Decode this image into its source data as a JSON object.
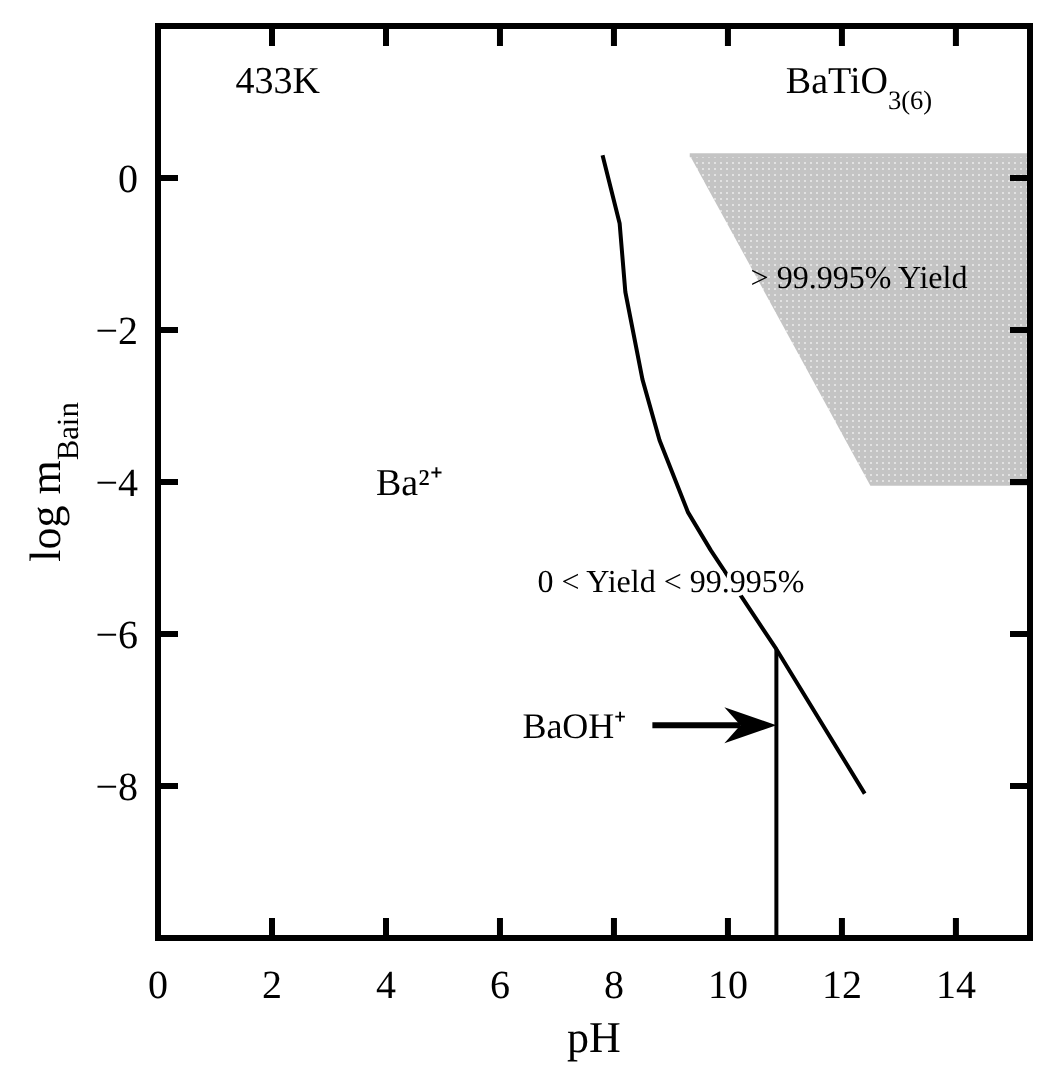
{
  "chart_data": {
    "type": "line",
    "xlabel": "pH",
    "ylabel": "log m$_{Bain}$",
    "xlim": [
      0,
      15.3
    ],
    "ylim": [
      -10,
      2
    ],
    "xticks": [
      0,
      2,
      4,
      6,
      8,
      10,
      12,
      14
    ],
    "yticks": [
      {
        "value": 0,
        "label": "0"
      },
      {
        "value": -2,
        "label": "−2"
      },
      {
        "value": -4,
        "label": "−4"
      },
      {
        "value": -6,
        "label": "−6"
      },
      {
        "value": -8,
        "label": "−8"
      }
    ],
    "grid": false,
    "marker": "none",
    "line_style": "solid",
    "series": [
      {
        "color": "#c4c4c4",
        "x": [
          9.33,
          12.5,
          15.3
        ],
        "values": [
          0.3,
          0.3,
          0.3
        ],
        "upper": [
          0.3,
          0.3,
          0.3
        ],
        "lower": [
          0.3,
          -4.05,
          -4.05
        ]
      },
      {
        "color": "#000000",
        "x": [
          7.8,
          8.1,
          8.2,
          8.5,
          8.8,
          9.3,
          9.7,
          10.85,
          12.4
        ],
        "values": [
          0.3,
          -0.6,
          -1.5,
          -2.65,
          -3.45,
          -4.4,
          -4.9,
          -6.2,
          -8.1
        ]
      },
      {
        "color": "#000000",
        "x": [
          10.85,
          10.85
        ],
        "values": [
          -6.2,
          -10
        ]
      }
    ],
    "annotations": [
      "433K",
      "BaTiO$_{3(6)}$",
      "> 99.995% Yield",
      "Ba²⁺",
      "0 < Yield < 99.995%",
      "BaOH⁺"
    ]
  }
}
